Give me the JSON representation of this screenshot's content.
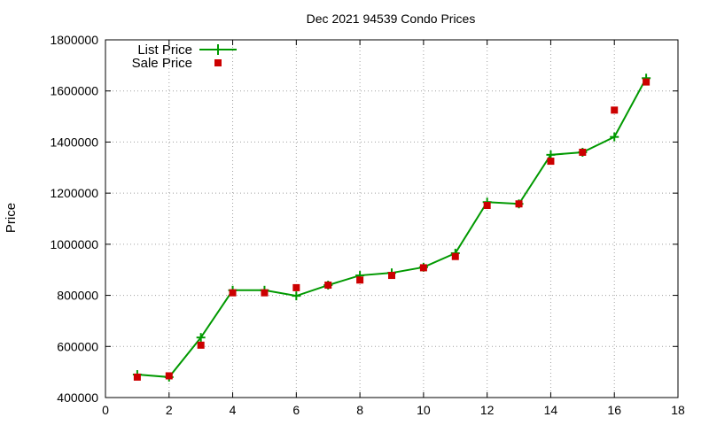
{
  "chart_data": {
    "type": "line",
    "title": "Dec 2021 94539 Condo Prices",
    "xlabel": "",
    "ylabel": "Price",
    "xlim": [
      0,
      18
    ],
    "ylim": [
      400000,
      1800000
    ],
    "x_ticks": [
      0,
      2,
      4,
      6,
      8,
      10,
      12,
      14,
      16,
      18
    ],
    "y_ticks": [
      400000,
      600000,
      800000,
      1000000,
      1200000,
      1400000,
      1600000,
      1800000
    ],
    "grid": true,
    "legend_position": "top-left",
    "series": [
      {
        "name": "List Price",
        "style": "line-with-plus-markers",
        "color": "#009900",
        "x": [
          1,
          2,
          3,
          4,
          5,
          6,
          7,
          8,
          9,
          10,
          11,
          12,
          13,
          14,
          15,
          16,
          17
        ],
        "y": [
          490000,
          480000,
          635000,
          820000,
          820000,
          798000,
          840000,
          878000,
          888000,
          910000,
          965000,
          1165000,
          1158000,
          1350000,
          1360000,
          1420000,
          1650000
        ]
      },
      {
        "name": "Sale Price",
        "style": "square-markers",
        "color": "#cc0000",
        "x": [
          1,
          2,
          3,
          4,
          5,
          6,
          7,
          8,
          9,
          10,
          11,
          12,
          13,
          14,
          15,
          16,
          17
        ],
        "y": [
          480000,
          485000,
          605000,
          810000,
          810000,
          830000,
          840000,
          860000,
          878000,
          908000,
          952000,
          1152000,
          1158000,
          1325000,
          1360000,
          1525000,
          1635000
        ]
      }
    ]
  }
}
